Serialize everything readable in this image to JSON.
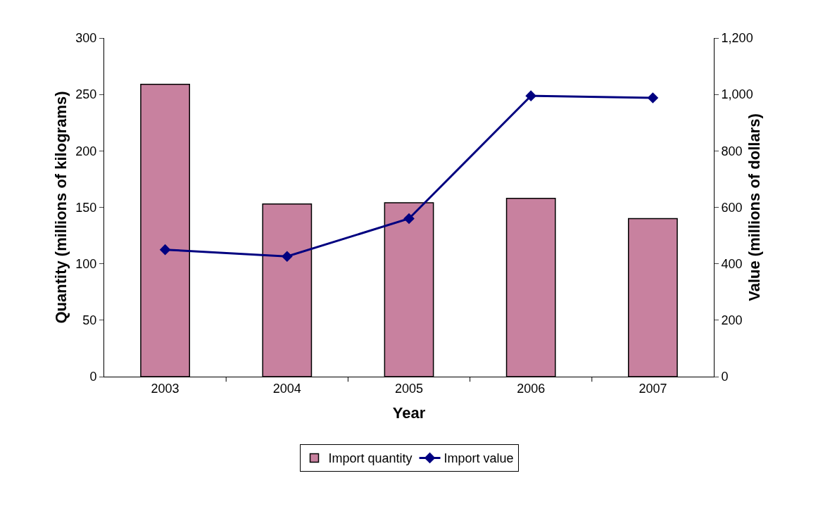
{
  "chart_data": {
    "type": "bar",
    "xlabel": "Year",
    "ylabel": "Quantity (millions of kilograms)",
    "y2label": "Value (millions of dollars)",
    "categories": [
      "2003",
      "2004",
      "2005",
      "2006",
      "2007"
    ],
    "series": [
      {
        "name": "Import quantity",
        "color": "#c8819f",
        "values": [
          259,
          153,
          154,
          158,
          140
        ]
      },
      {
        "name": "Import value",
        "type": "line",
        "axis": "y2",
        "color": "#000080",
        "marker": "diamond",
        "values": [
          450,
          426,
          560,
          995,
          988
        ]
      }
    ],
    "ylim": [
      0,
      300
    ],
    "yticks": [
      0,
      50,
      100,
      150,
      200,
      250,
      300
    ],
    "y2lim": [
      0,
      1200
    ],
    "y2ticks": [
      0,
      200,
      400,
      600,
      800,
      {
        "value": 1000,
        "label": "1,000"
      },
      {
        "value": 1200,
        "label": "1,200"
      }
    ],
    "grid": false,
    "legend": "bottom"
  }
}
